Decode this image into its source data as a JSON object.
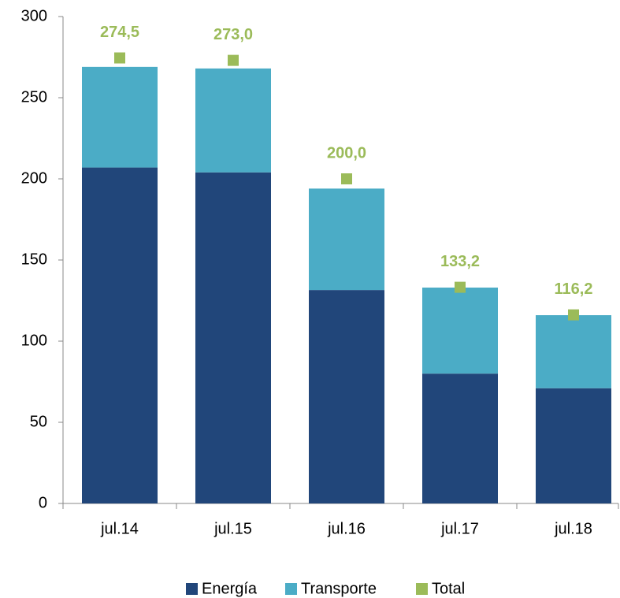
{
  "chart_data": {
    "type": "stacked_bar",
    "categories": [
      "jul.14",
      "jul.15",
      "jul.16",
      "jul.17",
      "jul.18"
    ],
    "series": [
      {
        "name": "Energía",
        "color": "#21467a",
        "values": [
          207,
          204,
          131.5,
          80,
          71
        ]
      },
      {
        "name": "Transporte",
        "color": "#4bacc6",
        "values": [
          62,
          64,
          62.5,
          53,
          45
        ]
      }
    ],
    "total": {
      "name": "Total",
      "color": "#9bbb59",
      "values": [
        274.5,
        273.0,
        200.0,
        133.2,
        116.2
      ],
      "value_labels": [
        "274,5",
        "273,0",
        "200,0",
        "133,2",
        "116,2"
      ]
    },
    "ylim": [
      0,
      300
    ],
    "yticks": [
      0,
      50,
      100,
      150,
      200,
      250,
      300
    ],
    "grid": false
  }
}
